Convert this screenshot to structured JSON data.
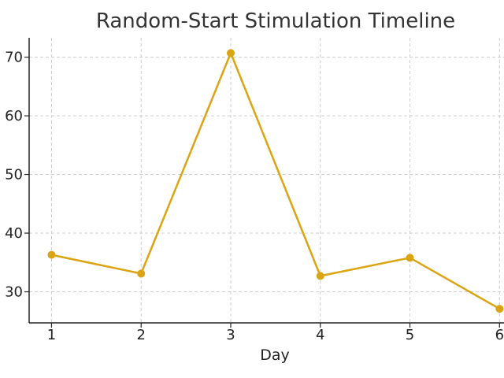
{
  "chart_data": {
    "type": "line",
    "title": "Random-Start Stimulation Timeline",
    "xlabel": "Day",
    "ylabel": "",
    "x": [
      1,
      2,
      3,
      4,
      5,
      6
    ],
    "xticks": [
      "1",
      "2",
      "3",
      "4",
      "5",
      "6"
    ],
    "yticks": [
      30,
      40,
      50,
      60,
      70
    ],
    "xlim": [
      0.75,
      6.05
    ],
    "ylim": [
      24.7,
      73.3
    ],
    "grid": true,
    "series": [
      {
        "name": "",
        "values": [
          36.3,
          33.1,
          70.7,
          32.7,
          35.8,
          27.1
        ],
        "color": "#dba413",
        "marker": "circle"
      }
    ]
  }
}
